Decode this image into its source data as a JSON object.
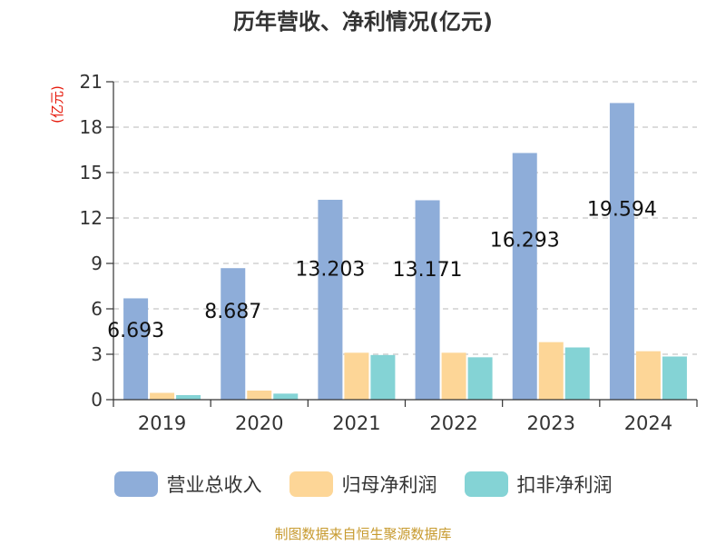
{
  "title": "历年营收、净利情况(亿元)",
  "source": "制图数据来自恒生聚源数据库",
  "colors": {
    "revenue": "#8eadd9",
    "parent_net_profit": "#fdd697",
    "deducted_net_profit": "#84d3d5",
    "unit_label": "#e6190b",
    "title": "#333333",
    "source": "#c79a2e"
  },
  "chart_data": {
    "type": "bar",
    "title": "历年营收、净利情况(亿元)",
    "ylabel": "(亿元)",
    "xlabel": "",
    "categories": [
      "2019",
      "2020",
      "2021",
      "2022",
      "2023",
      "2024"
    ],
    "ylim": [
      0,
      21
    ],
    "yticks": [
      0,
      3,
      6,
      9,
      12,
      15,
      18,
      21
    ],
    "grid": true,
    "legend_position": "bottom",
    "series": [
      {
        "name": "营业总收入",
        "color_key": "revenue",
        "values": [
          6.693,
          8.687,
          13.203,
          13.171,
          16.293,
          19.594
        ],
        "labels": [
          "6.693",
          "8.687",
          "13.203",
          "13.171",
          "16.293",
          "19.594"
        ]
      },
      {
        "name": "归母净利润",
        "color_key": "parent_net_profit",
        "values": [
          0.45,
          0.6,
          3.1,
          3.1,
          3.8,
          3.2
        ]
      },
      {
        "name": "扣非净利润",
        "color_key": "deducted_net_profit",
        "values": [
          0.3,
          0.4,
          2.95,
          2.8,
          3.45,
          2.85
        ]
      }
    ]
  }
}
